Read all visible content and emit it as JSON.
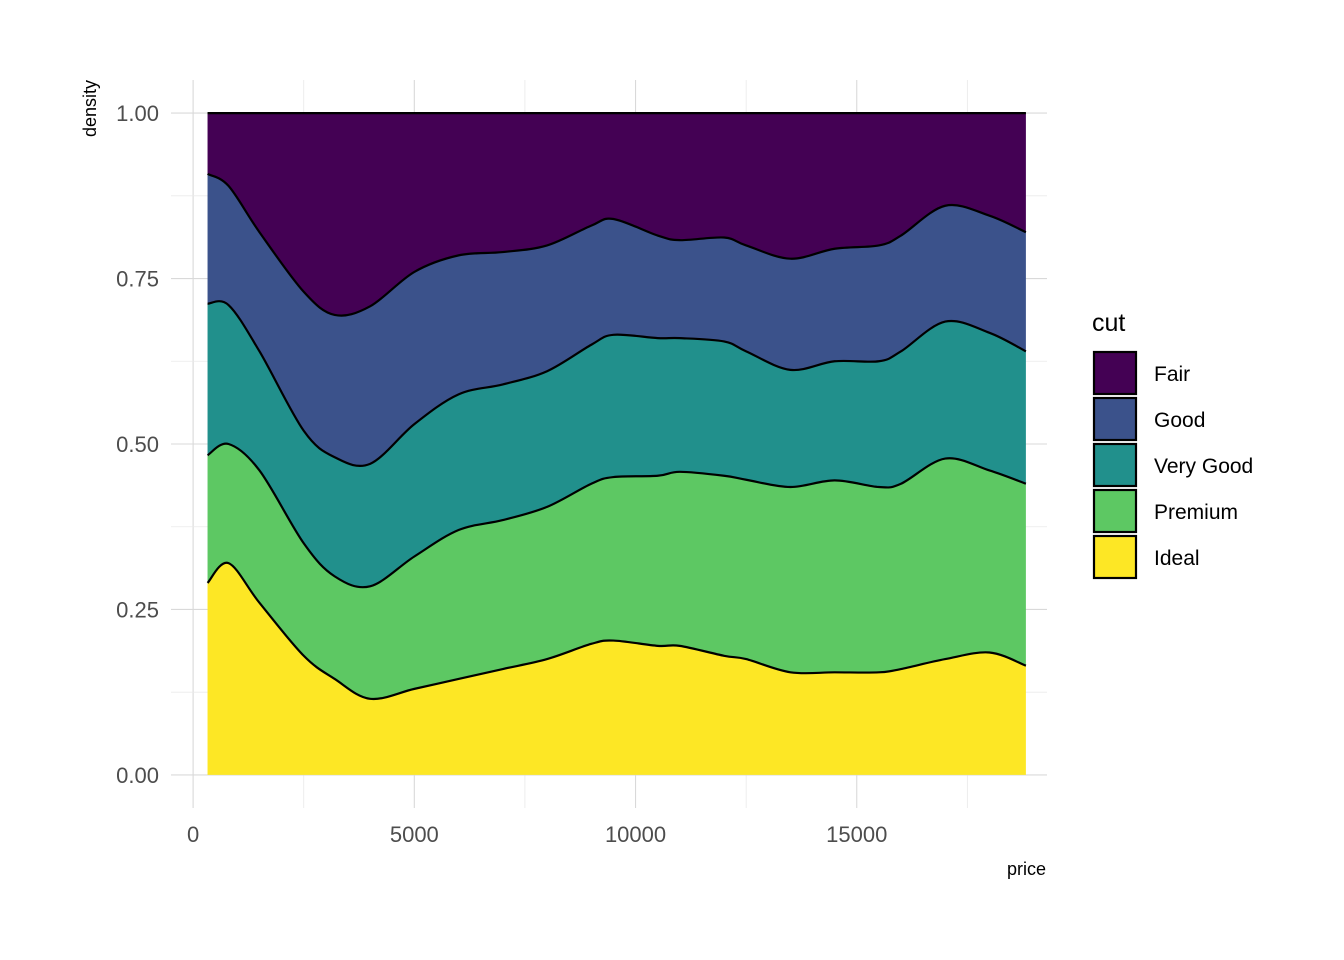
{
  "chart_data": {
    "type": "area",
    "stacking": "fill",
    "xlabel": "price",
    "ylabel": "density",
    "xlim": [
      -500,
      19300
    ],
    "ylim": [
      -0.05,
      1.05
    ],
    "x_ticks": [
      0,
      5000,
      10000,
      15000
    ],
    "x_tick_labels": [
      "0",
      "5000",
      "10000",
      "15000"
    ],
    "y_ticks": [
      0,
      0.25,
      0.5,
      0.75,
      1.0
    ],
    "y_tick_labels": [
      "0.00",
      "0.25",
      "0.50",
      "0.75",
      "1.00"
    ],
    "grid": true,
    "legend": {
      "title": "cut",
      "position": "right"
    },
    "x": [
      326,
      800,
      1500,
      2500,
      3200,
      4000,
      5000,
      6000,
      7000,
      8000,
      9000,
      9500,
      10500,
      11000,
      12000,
      12500,
      13500,
      14500,
      15500,
      16000,
      17000,
      18000,
      18823
    ],
    "boundaries": [
      [
        0.29,
        0.32,
        0.26,
        0.18,
        0.145,
        0.115,
        0.13,
        0.145,
        0.16,
        0.175,
        0.198,
        0.203,
        0.195,
        0.195,
        0.18,
        0.175,
        0.155,
        0.155,
        0.155,
        0.16,
        0.175,
        0.185,
        0.165
      ],
      [
        0.483,
        0.5,
        0.46,
        0.35,
        0.3,
        0.285,
        0.33,
        0.37,
        0.385,
        0.405,
        0.44,
        0.45,
        0.452,
        0.458,
        0.452,
        0.446,
        0.435,
        0.445,
        0.435,
        0.44,
        0.478,
        0.46,
        0.44
      ],
      [
        0.712,
        0.71,
        0.64,
        0.52,
        0.48,
        0.47,
        0.53,
        0.575,
        0.59,
        0.61,
        0.65,
        0.665,
        0.66,
        0.66,
        0.655,
        0.64,
        0.612,
        0.625,
        0.625,
        0.64,
        0.685,
        0.668,
        0.64
      ],
      [
        0.908,
        0.89,
        0.82,
        0.73,
        0.695,
        0.708,
        0.76,
        0.785,
        0.79,
        0.8,
        0.83,
        0.84,
        0.815,
        0.808,
        0.812,
        0.8,
        0.78,
        0.795,
        0.8,
        0.815,
        0.86,
        0.845,
        0.82
      ]
    ],
    "series": [
      {
        "name": "Fair",
        "color": "#440154"
      },
      {
        "name": "Good",
        "color": "#3B528B"
      },
      {
        "name": "Very Good",
        "color": "#21908C"
      },
      {
        "name": "Premium",
        "color": "#5DC863"
      },
      {
        "name": "Ideal",
        "color": "#FDE725"
      }
    ]
  }
}
